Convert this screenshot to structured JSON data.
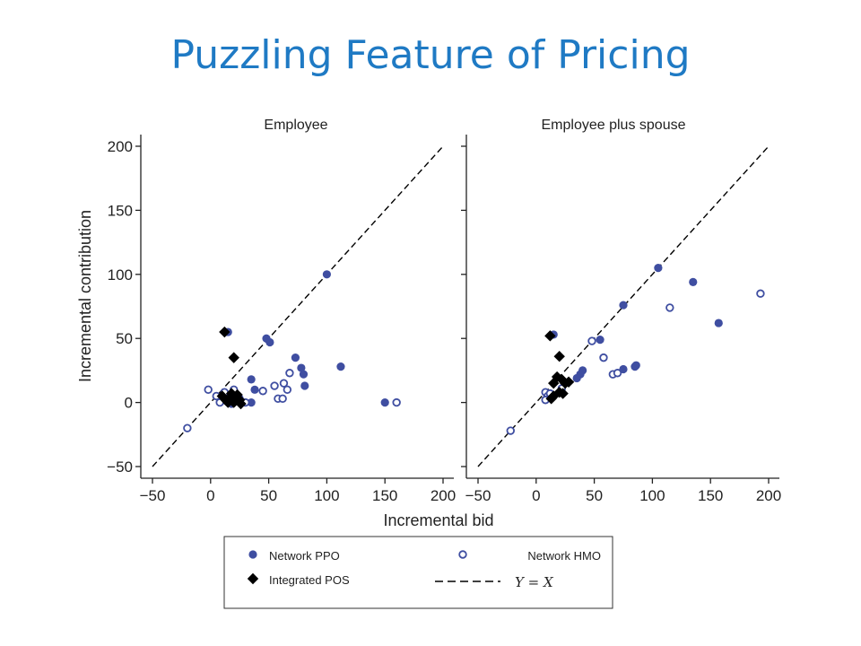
{
  "slide": {
    "title": "Puzzling Feature of Pricing"
  },
  "chart_data": {
    "type": "scatter",
    "xlabel": "Incremental  bid",
    "ylabel": "Incremental contribution",
    "xlim": [
      -50,
      200
    ],
    "ylim": [
      -50,
      200
    ],
    "xticks": [
      -50,
      0,
      50,
      100,
      150,
      200
    ],
    "yticks": [
      -50,
      0,
      50,
      100,
      150,
      200
    ],
    "xtick_labels": [
      "−50",
      "0",
      "50",
      "100",
      "150",
      "200"
    ],
    "ytick_labels": [
      "−50",
      "0",
      "50",
      "100",
      "150",
      "200"
    ],
    "reference_line": {
      "label": "Y = X",
      "style": "dashed",
      "color": "#000000"
    },
    "legend": {
      "placement": "bottom",
      "entries": [
        {
          "series": "Network PPO",
          "label": "Network PPO"
        },
        {
          "series": "Network HMO",
          "label": "Network HMO"
        },
        {
          "series": "Integrated POS",
          "label": "Integrated POS"
        },
        {
          "series": "Y = X",
          "label": "Y = X"
        }
      ]
    },
    "series_styles": {
      "Network PPO": {
        "marker": "filled-circle",
        "color": "#3f4ea1"
      },
      "Network HMO": {
        "marker": "hollow-circle",
        "color": "#3f4ea1"
      },
      "Integrated POS": {
        "marker": "diamond",
        "color": "#000000"
      }
    },
    "panels": [
      {
        "title": "Employee",
        "series": [
          {
            "name": "Network PPO",
            "points": [
              [
                100,
                100
              ],
              [
                48,
                50
              ],
              [
                51,
                47
              ],
              [
                73,
                35
              ],
              [
                78,
                27
              ],
              [
                80,
                22
              ],
              [
                112,
                28
              ],
              [
                35,
                18
              ],
              [
                38,
                10
              ],
              [
                81,
                13
              ],
              [
                35,
                0
              ],
              [
                150,
                0
              ],
              [
                15,
                55
              ],
              [
                20,
                5
              ],
              [
                25,
                3
              ],
              [
                18,
                -1
              ]
            ]
          },
          {
            "name": "Network HMO",
            "points": [
              [
                -20,
                -20
              ],
              [
                -2,
                10
              ],
              [
                5,
                5
              ],
              [
                8,
                0
              ],
              [
                12,
                8
              ],
              [
                20,
                10
              ],
              [
                25,
                2
              ],
              [
                30,
                0
              ],
              [
                45,
                9
              ],
              [
                55,
                13
              ],
              [
                58,
                3
              ],
              [
                62,
                3
              ],
              [
                63,
                15
              ],
              [
                66,
                10
              ],
              [
                68,
                23
              ],
              [
                160,
                0
              ]
            ]
          },
          {
            "name": "Integrated POS",
            "points": [
              [
                12,
                55
              ],
              [
                20,
                35
              ],
              [
                10,
                5
              ],
              [
                13,
                2
              ],
              [
                15,
                0
              ],
              [
                17,
                4
              ],
              [
                18,
                7
              ],
              [
                20,
                0
              ],
              [
                22,
                3
              ],
              [
                23,
                6
              ],
              [
                25,
                2
              ],
              [
                26,
                -1
              ],
              [
                19,
                1
              ]
            ]
          }
        ]
      },
      {
        "title": "Employee plus spouse",
        "series": [
          {
            "name": "Network PPO",
            "points": [
              [
                105,
                105
              ],
              [
                135,
                94
              ],
              [
                157,
                62
              ],
              [
                75,
                76
              ],
              [
                55,
                49
              ],
              [
                15,
                53
              ],
              [
                38,
                22
              ],
              [
                40,
                25
              ],
              [
                75,
                26
              ],
              [
                85,
                28
              ],
              [
                86,
                29
              ],
              [
                35,
                19
              ]
            ]
          },
          {
            "name": "Network HMO",
            "points": [
              [
                -22,
                -22
              ],
              [
                193,
                85
              ],
              [
                115,
                74
              ],
              [
                48,
                48
              ],
              [
                58,
                35
              ],
              [
                66,
                22
              ],
              [
                70,
                23
              ],
              [
                8,
                8
              ],
              [
                10,
                5
              ],
              [
                12,
                7
              ],
              [
                22,
                11
              ],
              [
                8,
                2
              ]
            ]
          },
          {
            "name": "Integrated POS",
            "points": [
              [
                12,
                52
              ],
              [
                20,
                36
              ],
              [
                15,
                5
              ],
              [
                18,
                20
              ],
              [
                22,
                18
              ],
              [
                25,
                15
              ],
              [
                28,
                16
              ],
              [
                15,
                15
              ],
              [
                20,
                8
              ],
              [
                23,
                7
              ],
              [
                13,
                3
              ]
            ]
          }
        ]
      }
    ]
  }
}
